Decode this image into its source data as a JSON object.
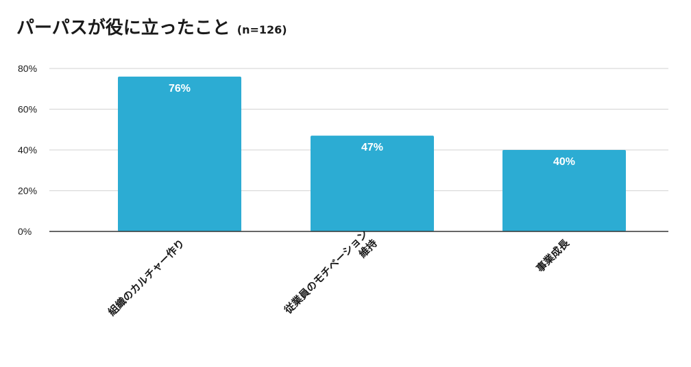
{
  "title": "パーパスが役に立ったこと",
  "subtitle": "(n=126)",
  "colors": {
    "bar": "#2cacd3",
    "grid": "#d9d9d9",
    "axis": "#333333"
  },
  "chart_data": {
    "type": "bar",
    "title": "パーパスが役に立ったこと",
    "subtitle": "(n=126)",
    "categories": [
      [
        "組織のカルチャー作り"
      ],
      [
        "従業員のモチベーション",
        "維持"
      ],
      [
        "事業成長"
      ]
    ],
    "values": [
      76,
      47,
      40
    ],
    "data_labels": [
      "76%",
      "47%",
      "40%"
    ],
    "yticks": [
      "0%",
      "20%",
      "40%",
      "60%",
      "80%"
    ],
    "ytick_values": [
      0,
      20,
      40,
      60,
      80
    ],
    "ylim": [
      0,
      80
    ],
    "grid": true,
    "legend": "none"
  }
}
